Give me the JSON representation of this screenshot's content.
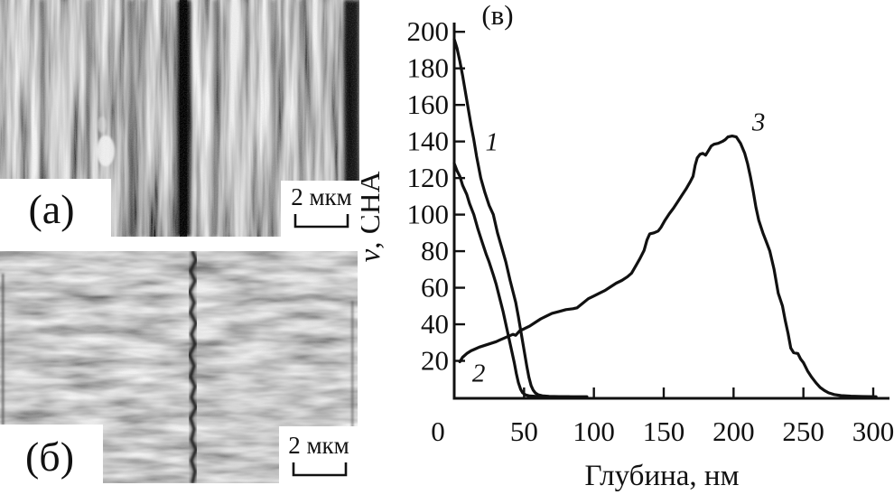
{
  "panels": {
    "a": {
      "label": "(а)",
      "scale_label": "2 мкм"
    },
    "b": {
      "label": "(б)",
      "scale_label": "2 мкм"
    }
  },
  "chart_data": {
    "type": "line",
    "title": "(в)",
    "xlabel": "Глубина, нм",
    "ylabel": "ν, СНА",
    "ylabel_symbol": "ν",
    "ylabel_rest": ", СНА",
    "xlim": [
      0,
      312
    ],
    "ylim": [
      0,
      205
    ],
    "x_ticks": [
      0,
      50,
      100,
      150,
      200,
      250,
      300
    ],
    "y_ticks": [
      20,
      40,
      60,
      80,
      100,
      120,
      140,
      160,
      180,
      200
    ],
    "grid": false,
    "legend": "inline-curve-labels",
    "ink": "#111111",
    "series": [
      {
        "name": "1",
        "points": [
          [
            0,
            196
          ],
          [
            2,
            191
          ],
          [
            4,
            184
          ],
          [
            6,
            176
          ],
          [
            8,
            167
          ],
          [
            10,
            158
          ],
          [
            12,
            149
          ],
          [
            14,
            141
          ],
          [
            16,
            132
          ],
          [
            19,
            120
          ],
          [
            22,
            112
          ],
          [
            25,
            105
          ],
          [
            28,
            100
          ],
          [
            31,
            90
          ],
          [
            34,
            82
          ],
          [
            37,
            74
          ],
          [
            40,
            64
          ],
          [
            42,
            58
          ],
          [
            44,
            52
          ],
          [
            46,
            44
          ],
          [
            48,
            35
          ],
          [
            50,
            26
          ],
          [
            52,
            17
          ],
          [
            53.5,
            11
          ],
          [
            55,
            6.5
          ],
          [
            56.5,
            4
          ],
          [
            58,
            2.5
          ],
          [
            60,
            1.5
          ],
          [
            63,
            0.9
          ],
          [
            68,
            0.6
          ],
          [
            75,
            0.45
          ],
          [
            85,
            0.4
          ],
          [
            95,
            0.4
          ]
        ]
      },
      {
        "name": "2",
        "points": [
          [
            0,
            128
          ],
          [
            2,
            124
          ],
          [
            4,
            121
          ],
          [
            6,
            116
          ],
          [
            9,
            111
          ],
          [
            11,
            106
          ],
          [
            14,
            100
          ],
          [
            17,
            92
          ],
          [
            20,
            85
          ],
          [
            23,
            78
          ],
          [
            25,
            74
          ],
          [
            28,
            67
          ],
          [
            30,
            62
          ],
          [
            33,
            53
          ],
          [
            35,
            47
          ],
          [
            37,
            40
          ],
          [
            39,
            33
          ],
          [
            41,
            26
          ],
          [
            43,
            19
          ],
          [
            44.5,
            13
          ],
          [
            46,
            8
          ],
          [
            47.5,
            4.5
          ],
          [
            49,
            2.5
          ],
          [
            51,
            1.4
          ],
          [
            54,
            0.8
          ],
          [
            60,
            0.5
          ],
          [
            70,
            0.4
          ],
          [
            82,
            0.38
          ]
        ]
      },
      {
        "name": "3",
        "points": [
          [
            4,
            19.5
          ],
          [
            6,
            22
          ],
          [
            9,
            24
          ],
          [
            12,
            25.5
          ],
          [
            15,
            26.5
          ],
          [
            18,
            27.5
          ],
          [
            22,
            28.5
          ],
          [
            26,
            29.5
          ],
          [
            30,
            30.5
          ],
          [
            33,
            31.5
          ],
          [
            36,
            32.5
          ],
          [
            39,
            33.5
          ],
          [
            42,
            34.5
          ],
          [
            44,
            34
          ],
          [
            47,
            36.5
          ],
          [
            50,
            37.5
          ],
          [
            54,
            39
          ],
          [
            58,
            41
          ],
          [
            62,
            43
          ],
          [
            66,
            44.5
          ],
          [
            70,
            46
          ],
          [
            75,
            47
          ],
          [
            80,
            48
          ],
          [
            85,
            48.5
          ],
          [
            88,
            49
          ],
          [
            92,
            51.5
          ],
          [
            96,
            54
          ],
          [
            100,
            55.5
          ],
          [
            104,
            57
          ],
          [
            108,
            58.5
          ],
          [
            112,
            60.5
          ],
          [
            116,
            62.5
          ],
          [
            120,
            64
          ],
          [
            124,
            66
          ],
          [
            127,
            68
          ],
          [
            130,
            72
          ],
          [
            133,
            76
          ],
          [
            136,
            80.5
          ],
          [
            138,
            86
          ],
          [
            140,
            89.5
          ],
          [
            143,
            90
          ],
          [
            146,
            91
          ],
          [
            148,
            93
          ],
          [
            151,
            97
          ],
          [
            154,
            100.5
          ],
          [
            157,
            103.5
          ],
          [
            160,
            107
          ],
          [
            163,
            110.5
          ],
          [
            166,
            114
          ],
          [
            169,
            118
          ],
          [
            171,
            121
          ],
          [
            172.5,
            127
          ],
          [
            174,
            131
          ],
          [
            176,
            133
          ],
          [
            178,
            133.5
          ],
          [
            180,
            132.5
          ],
          [
            182,
            135
          ],
          [
            184,
            137.5
          ],
          [
            186,
            138.5
          ],
          [
            189,
            139
          ],
          [
            192,
            140
          ],
          [
            194,
            141
          ],
          [
            196,
            142.5
          ],
          [
            199,
            143
          ],
          [
            202,
            142.5
          ],
          [
            205,
            139
          ],
          [
            208,
            133.5
          ],
          [
            210,
            128
          ],
          [
            212,
            121
          ],
          [
            214,
            113
          ],
          [
            216,
            104
          ],
          [
            218,
            97
          ],
          [
            221,
            90
          ],
          [
            224,
            84
          ],
          [
            226,
            80
          ],
          [
            229,
            70
          ],
          [
            232,
            57
          ],
          [
            235,
            50
          ],
          [
            237,
            42
          ],
          [
            239,
            35
          ],
          [
            241,
            27
          ],
          [
            243,
            24.5
          ],
          [
            246,
            24
          ],
          [
            248,
            21
          ],
          [
            250,
            19
          ],
          [
            253,
            14.5
          ],
          [
            256,
            11
          ],
          [
            259,
            8
          ],
          [
            262,
            5.5
          ],
          [
            265,
            3.8
          ],
          [
            268,
            2.5
          ],
          [
            272,
            1.6
          ],
          [
            277,
            1
          ],
          [
            284,
            0.7
          ],
          [
            292,
            0.5
          ],
          [
            302,
            0.4
          ]
        ]
      }
    ],
    "annotations": [
      {
        "text": "1",
        "x": 27,
        "y": 140
      },
      {
        "text": "2",
        "x": 17.5,
        "y": 13.5
      },
      {
        "text": "3",
        "x": 218,
        "y": 151
      }
    ]
  }
}
